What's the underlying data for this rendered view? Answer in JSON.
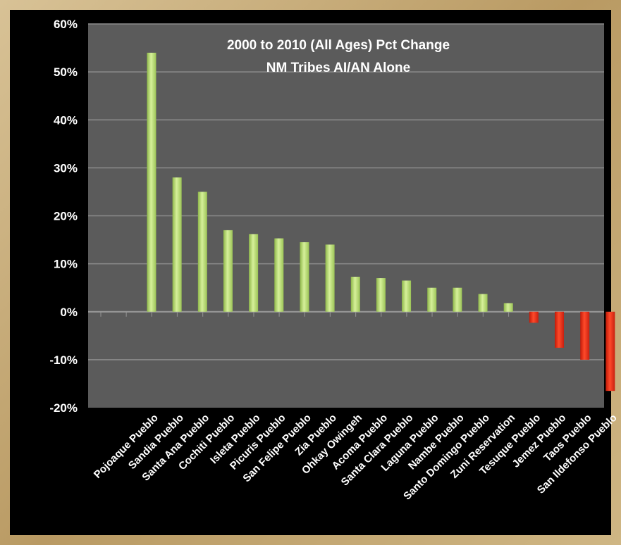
{
  "chart_data": {
    "type": "bar",
    "title": "2000 to 2010 (All Ages) Pct Change",
    "subtitle": "NM Tribes AI/AN Alone",
    "categories": [
      "Pojoaque Pueblo",
      "Sandia Pueblo",
      "Santa Ana Pueblo",
      "Cochiti Pueblo",
      "Isleta Pueblo",
      "Picuris Pueblo",
      "San Felipe Pueblo",
      "Zia Pueblo",
      "Ohkay Owingeh",
      "Acoma Pueblo",
      "Santa Clara Pueblo",
      "Laguna Pueblo",
      "Nambe Pueblo",
      "Santo Domingo Pueblo",
      "Zuni Reservation",
      "Tesuque Pueblo",
      "Jemez Pueblo",
      "Taos Pueblo",
      "San Ildefonso Pueblo"
    ],
    "values": [
      54,
      28,
      25,
      17,
      16.2,
      15.3,
      14.5,
      14,
      7.3,
      7,
      6.5,
      5,
      5,
      3.7,
      1.8,
      -2.3,
      -7.5,
      -10,
      -16.5
    ],
    "ylim": [
      -20,
      60
    ],
    "yticks": [
      "60%",
      "50%",
      "40%",
      "30%",
      "20%",
      "10%",
      "0%",
      "-10%",
      "-20%"
    ],
    "grid": true,
    "colors": {
      "positive": "#bde27a",
      "negative": "#e62a12",
      "plot_bg": "#5b5b5b"
    }
  }
}
